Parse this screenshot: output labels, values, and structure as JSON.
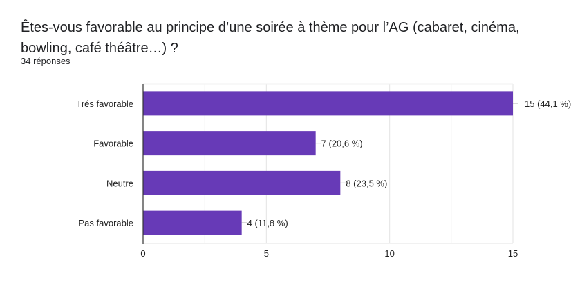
{
  "question": "Êtes-vous favorable au principe d’une soirée à thème pour l’AG (cabaret, cinéma, bowling, café théâtre…) ?",
  "responses": "34 réponses",
  "colors": {
    "bar": "#673ab7",
    "grid": "#e8e8e8",
    "axis": "#333333"
  },
  "chart_data": {
    "type": "bar",
    "orientation": "horizontal",
    "categories": [
      "Trés favorable",
      "Favorable",
      "Neutre",
      "Pas favorable"
    ],
    "values": [
      15,
      7,
      8,
      4
    ],
    "data_labels": [
      "15 (44,1 %)",
      "7 (20,6 %)",
      "8 (23,5 %)",
      "4 (11,8 %)"
    ],
    "xlim": [
      0,
      15
    ],
    "x_ticks": [
      "0",
      "5",
      "10",
      "15"
    ],
    "grid": true,
    "title": "",
    "xlabel": "",
    "ylabel": ""
  }
}
